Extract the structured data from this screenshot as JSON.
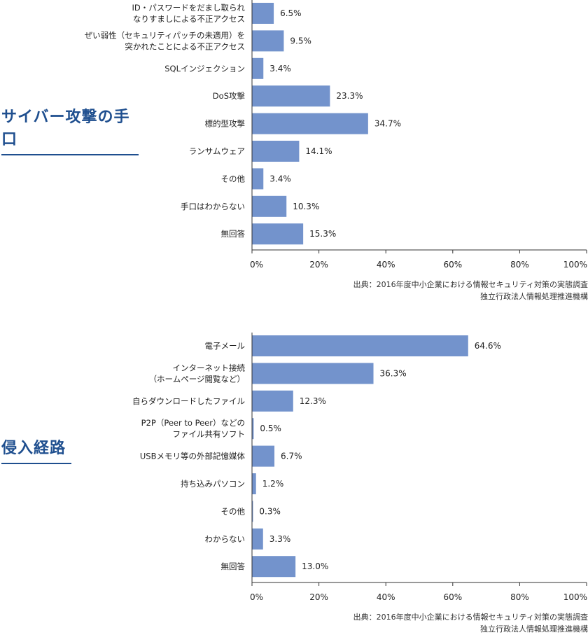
{
  "sections": [
    {
      "title": "サイバー攻撃の手口",
      "source_line1": "出典：2016年度中小企業における情報セキュリティ対策の実態調査",
      "source_line2": "独立行政法人情報処理推進機構"
    },
    {
      "title": "侵入経路",
      "source_line1": "出典：2016年度中小企業における情報セキュリティ対策の実態調査",
      "source_line2": "独立行政法人情報処理推進機構"
    }
  ],
  "colors": {
    "bar": "#7393cc",
    "axis": "#333333",
    "grid": "#555555",
    "title": "#1f4f8f"
  },
  "chart_data": [
    {
      "type": "bar",
      "orientation": "horizontal",
      "categories": [
        [
          "ID・パスワードをだまし取られ",
          "なりすましによる不正アクセス"
        ],
        [
          "ぜい弱性（セキュリティパッチの未適用）を",
          "突かれたことによる不正アクセス"
        ],
        [
          "SQLインジェクション"
        ],
        [
          "DoS攻撃"
        ],
        [
          "標的型攻撃"
        ],
        [
          "ランサムウェア"
        ],
        [
          "その他"
        ],
        [
          "手口はわからない"
        ],
        [
          "無回答"
        ]
      ],
      "values": [
        6.5,
        9.5,
        3.4,
        23.3,
        34.7,
        14.1,
        3.4,
        10.3,
        15.3
      ],
      "value_labels": [
        "6.5%",
        "9.5%",
        "3.4%",
        "23.3%",
        "34.7%",
        "14.1%",
        "3.4%",
        "10.3%",
        "15.3%"
      ],
      "xlim": [
        0,
        100
      ],
      "xticks": [
        "0%",
        "20%",
        "40%",
        "60%",
        "80%",
        "100%"
      ],
      "grid": false
    },
    {
      "type": "bar",
      "orientation": "horizontal",
      "categories": [
        [
          "電子メール"
        ],
        [
          "インターネット接続",
          "（ホームページ閲覧など）"
        ],
        [
          "自らダウンロードしたファイル"
        ],
        [
          "P2P（Peer to Peer）などの",
          "ファイル共有ソフト"
        ],
        [
          "USBメモリ等の外部記憶媒体"
        ],
        [
          "持ち込みパソコン"
        ],
        [
          "その他"
        ],
        [
          "わからない"
        ],
        [
          "無回答"
        ]
      ],
      "values": [
        64.6,
        36.3,
        12.3,
        0.5,
        6.7,
        1.2,
        0.3,
        3.3,
        13.0
      ],
      "value_labels": [
        "64.6%",
        "36.3%",
        "12.3%",
        "0.5%",
        "6.7%",
        "1.2%",
        "0.3%",
        "3.3%",
        "13.0%"
      ],
      "xlim": [
        0,
        100
      ],
      "xticks": [
        "0%",
        "20%",
        "40%",
        "60%",
        "80%",
        "100%"
      ],
      "grid": false
    }
  ]
}
